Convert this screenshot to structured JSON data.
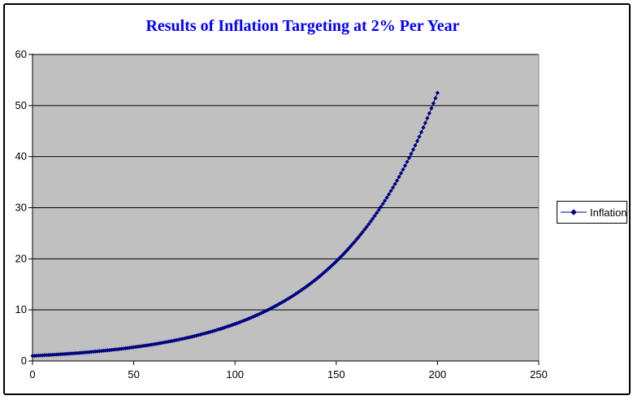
{
  "chart": {
    "background_color": "#ffffff",
    "border_color": "#000000"
  },
  "chart_data": {
    "type": "line",
    "title": "Results of Inflation Targeting at 2% Per Year",
    "title_color": "#0000ff",
    "xlabel": "",
    "ylabel": "",
    "xlim": [
      0,
      250
    ],
    "ylim": [
      0,
      60
    ],
    "x_ticks": [
      0,
      50,
      100,
      150,
      200,
      250
    ],
    "y_ticks": [
      0,
      10,
      20,
      30,
      40,
      50,
      60
    ],
    "grid": "horizontal",
    "gridline_color": "#000000",
    "plot_bg": "#c0c0c0",
    "plot_right_edge_color": "#808080",
    "legend_position": "right",
    "series": [
      {
        "name": "Inflation",
        "color": "#000080",
        "marker": "diamond",
        "x_start": 0,
        "x_end": 200,
        "x_step": 1,
        "formula": "value = 1.02^year (index starts at 1, compounds 2% per year)",
        "generator": {
          "initial": 1,
          "growth": 1.02
        },
        "sample_points": [
          [
            0,
            1.0
          ],
          [
            10,
            1.22
          ],
          [
            20,
            1.49
          ],
          [
            30,
            1.81
          ],
          [
            40,
            2.21
          ],
          [
            50,
            2.69
          ],
          [
            60,
            3.28
          ],
          [
            70,
            4.0
          ],
          [
            80,
            4.88
          ],
          [
            90,
            5.94
          ],
          [
            100,
            7.24
          ],
          [
            110,
            8.83
          ],
          [
            120,
            10.77
          ],
          [
            130,
            13.12
          ],
          [
            140,
            16.0
          ],
          [
            150,
            19.5
          ],
          [
            160,
            23.77
          ],
          [
            170,
            28.97
          ],
          [
            180,
            35.32
          ],
          [
            190,
            43.06
          ],
          [
            200,
            52.48
          ]
        ]
      }
    ]
  }
}
